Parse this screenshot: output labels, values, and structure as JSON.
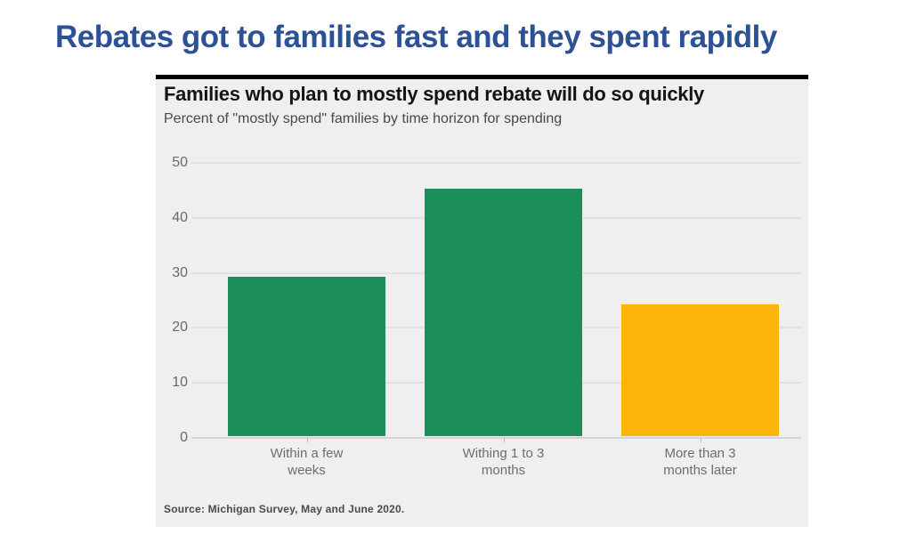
{
  "slide": {
    "title": "Rebates got to families fast and they spent rapidly",
    "title_color": "#2d5195"
  },
  "chart_data": {
    "type": "bar",
    "title": "Families who plan to mostly spend rebate will do so quickly",
    "subtitle": "Percent of \"mostly spend\" families by time horizon for spending",
    "source": "Source: Michigan Survey, May and June 2020.",
    "categories": [
      "Within a few\nweeks",
      "Withing 1 to 3\nmonths",
      "More than 3\nmonths later"
    ],
    "values": [
      29,
      45,
      24
    ],
    "colors": [
      "#1b8e5a",
      "#1b8e5a",
      "#fdb40a"
    ],
    "xlabel": "",
    "ylabel": "",
    "ylim": [
      0,
      50
    ],
    "yticks": [
      0,
      10,
      20,
      30,
      40,
      50
    ],
    "grid": true,
    "legend": false,
    "plot_background": "#efefef",
    "gridline_color": "#e2e2e2"
  }
}
